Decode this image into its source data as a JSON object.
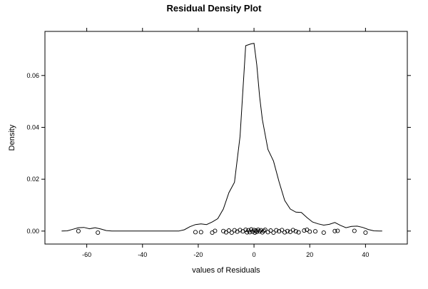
{
  "chart_data": {
    "type": "line",
    "title": "Residual Density Plot",
    "xlabel": "values of Residuals",
    "ylabel": "Density",
    "xlim": [
      -75,
      55
    ],
    "ylim": [
      -0.005,
      0.077
    ],
    "x_ticks": [
      -60,
      -40,
      -20,
      0,
      20,
      40
    ],
    "x_tick_labels": [
      "-60",
      "-40",
      "-20",
      "0",
      "20",
      "40"
    ],
    "y_ticks": [
      0.0,
      0.02,
      0.04,
      0.06
    ],
    "y_tick_labels": [
      "0.00",
      "0.02",
      "0.04",
      "0.06"
    ],
    "grid": false,
    "legend": "none",
    "line_color": "#000000",
    "density_curve": {
      "x": [
        -69,
        -67,
        -65,
        -63,
        -61,
        -59,
        -57,
        -55,
        -53,
        -51,
        -49,
        -45,
        -40,
        -35,
        -30,
        -27,
        -25,
        -23,
        -21,
        -19,
        -17,
        -15,
        -13,
        -11,
        -9,
        -7,
        -5,
        -3,
        -1,
        0,
        1,
        2,
        3,
        5,
        7,
        9,
        11,
        13,
        15,
        17,
        19,
        21,
        23,
        25,
        27,
        29,
        31,
        33,
        35,
        37,
        39,
        41,
        43,
        45,
        46
      ],
      "y": [
        0.0,
        0.0001,
        0.0007,
        0.0013,
        0.0014,
        0.0009,
        0.0013,
        0.0008,
        0.0002,
        0.0,
        0.0,
        0.0,
        0.0,
        0.0,
        0.0,
        0.0,
        0.0005,
        0.0017,
        0.0025,
        0.0028,
        0.0025,
        0.0035,
        0.0048,
        0.0085,
        0.0148,
        0.0188,
        0.0365,
        0.0715,
        0.0722,
        0.0724,
        0.064,
        0.052,
        0.043,
        0.0315,
        0.027,
        0.019,
        0.0118,
        0.0085,
        0.0073,
        0.0072,
        0.0052,
        0.0035,
        0.0028,
        0.0023,
        0.0026,
        0.0033,
        0.0022,
        0.0013,
        0.0018,
        0.0019,
        0.0014,
        0.0006,
        0.0001,
        0.0,
        0.0
      ]
    },
    "rug_points": {
      "x": [
        -63,
        -56,
        -21,
        -19,
        -15,
        -14,
        -11,
        -10,
        -9,
        -8,
        -7,
        -6,
        -5,
        -4,
        -3,
        -2.5,
        -2,
        -1.5,
        -1,
        -0.5,
        0,
        0.3,
        0.7,
        1,
        1.5,
        2,
        2.5,
        3,
        3.5,
        4,
        5,
        6,
        7,
        8,
        9,
        10,
        11,
        12,
        13,
        14,
        15,
        16,
        18,
        19,
        20,
        22,
        25,
        29,
        30,
        36,
        40
      ],
      "y": [
        0.0,
        -0.0006,
        -0.0004,
        -0.0004,
        -0.0006,
        0.0001,
        0.0,
        -0.0005,
        0.0002,
        -0.0006,
        0.0003,
        -0.0002,
        0.0004,
        -0.0001,
        0.0005,
        -0.0005,
        0.0003,
        -0.0004,
        0.0006,
        -0.0002,
        0.0004,
        -0.0006,
        0.0002,
        -0.0003,
        0.0005,
        -0.0001,
        0.0003,
        -0.0005,
        0.0001,
        0.0005,
        -0.0004,
        0.0002,
        -0.0006,
        0.0003,
        -0.0001,
        0.0004,
        -0.0005,
        0.0,
        -0.0003,
        0.0004,
        -0.0001,
        -0.0005,
        0.0002,
        0.0005,
        -0.0002,
        -0.0001,
        -0.0006,
        0.0,
        0.0001,
        0.0001,
        -0.0006
      ]
    }
  }
}
